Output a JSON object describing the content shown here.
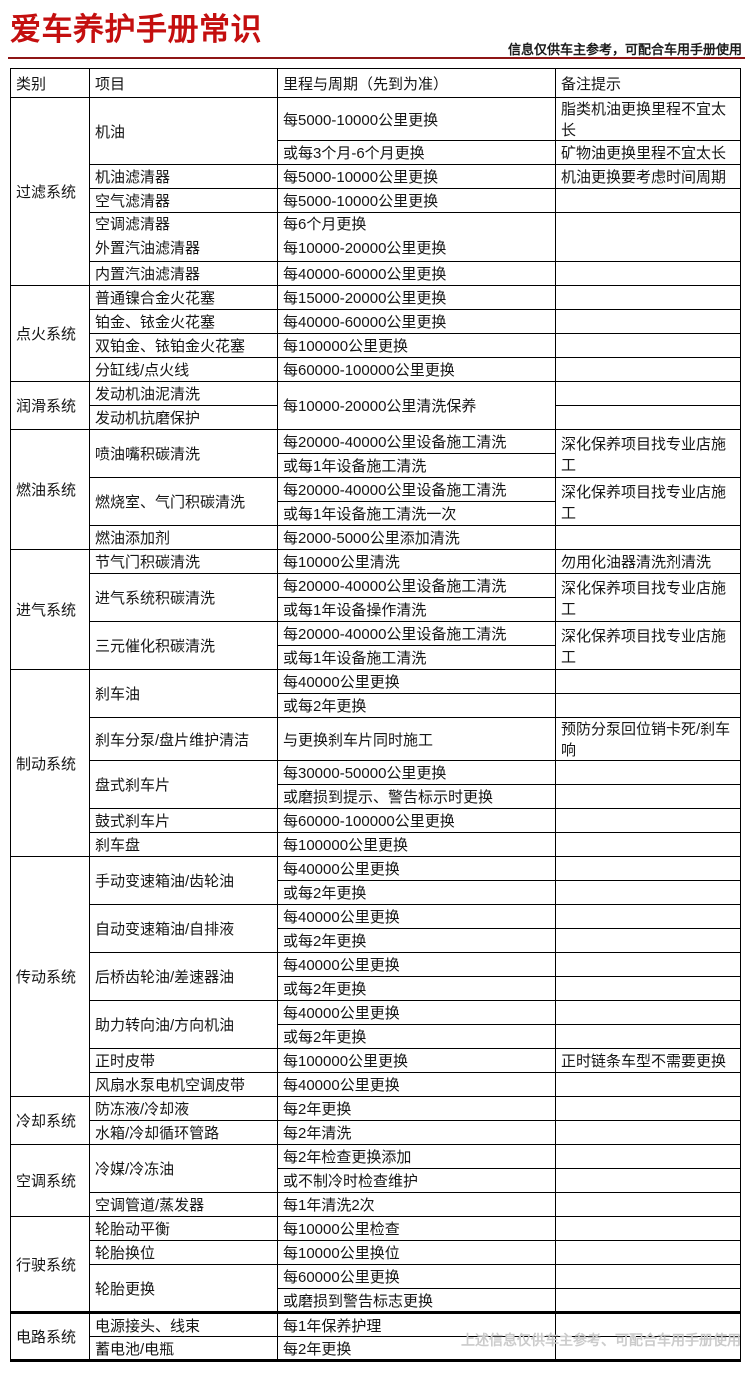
{
  "page": {
    "title": "爱车养护手册常识",
    "subtitle": "信息仅供车主参考，可配合车用手册使用",
    "footer": "上述信息仅供车主参考、可配合车用手册使用",
    "title_color": "#c40f0f",
    "rule_color": "#8e1515",
    "footer_color": "#cbcbcb"
  },
  "table": {
    "headers": [
      "类别",
      "项目",
      "里程与周期（先到为准）",
      "备注提示"
    ],
    "sections": [
      {
        "category": "过滤系统",
        "items": [
          {
            "name": "机油",
            "rows": [
              {
                "s": "每5000-10000公里更换",
                "n": "脂类机油更换里程不宜太长"
              },
              {
                "s": "或每3个月-6个月更换",
                "n": "矿物油更换里程不宜太长"
              }
            ]
          },
          {
            "name": "机油滤清器",
            "rows": [
              {
                "s": "每5000-10000公里更换",
                "n": "机油更换要考虑时间周期"
              }
            ]
          },
          {
            "name": "空气滤清器",
            "rows": [
              {
                "s": "每5000-10000公里更换",
                "n": ""
              }
            ]
          },
          {
            "name": "空调滤清器\n外置汽油滤清器",
            "rows": [
              {
                "s": "每6个月更换\n每10000-20000公里更换",
                "n": "",
                "h2": true
              }
            ]
          },
          {
            "name": "内置汽油滤清器",
            "rows": [
              {
                "s": "每40000-60000公里更换",
                "n": ""
              }
            ]
          }
        ]
      },
      {
        "category": "点火系统",
        "items": [
          {
            "name": "普通镍合金火花塞",
            "rows": [
              {
                "s": "每15000-20000公里更换",
                "n": ""
              }
            ]
          },
          {
            "name": "铂金、铱金火花塞",
            "rows": [
              {
                "s": "每40000-60000公里更换",
                "n": ""
              }
            ]
          },
          {
            "name": "双铂金、铱铂金火花塞",
            "rows": [
              {
                "s": "每100000公里更换",
                "n": ""
              }
            ]
          },
          {
            "name": "分缸线/点火线",
            "rows": [
              {
                "s": "每60000-100000公里更换",
                "n": ""
              }
            ]
          }
        ]
      },
      {
        "category": "润滑系统",
        "items": [
          {
            "name": "发动机油泥清洗",
            "rows": [
              {
                "s": "每10000-20000公里清洗保养",
                "s_span": 2,
                "n": ""
              }
            ]
          },
          {
            "name": "发动机抗磨保护",
            "rows": [
              {
                "s": null,
                "n": ""
              }
            ]
          }
        ]
      },
      {
        "category": "燃油系统",
        "items": [
          {
            "name": "喷油嘴积碳清洗",
            "rows": [
              {
                "s": "每20000-40000公里设备施工清洗",
                "n": "深化保养项目找专业店施工",
                "n_span": 2
              },
              {
                "s": "或每1年设备施工清洗",
                "n": null
              }
            ]
          },
          {
            "name": "燃烧室、气门积碳清洗",
            "rows": [
              {
                "s": "每20000-40000公里设备施工清洗",
                "n": "深化保养项目找专业店施工",
                "n_span": 2
              },
              {
                "s": "或每1年设备施工清洗一次",
                "n": null
              }
            ]
          },
          {
            "name": "燃油添加剂",
            "rows": [
              {
                "s": "每2000-5000公里添加清洗",
                "n": ""
              }
            ]
          }
        ]
      },
      {
        "category": "进气系统",
        "items": [
          {
            "name": "节气门积碳清洗",
            "rows": [
              {
                "s": "每10000公里清洗",
                "n": "勿用化油器清洗剂清洗"
              }
            ]
          },
          {
            "name": "进气系统积碳清洗",
            "rows": [
              {
                "s": "每20000-40000公里设备施工清洗",
                "n": "深化保养项目找专业店施工",
                "n_span": 2
              },
              {
                "s": "或每1年设备操作清洗",
                "n": null
              }
            ]
          },
          {
            "name": "三元催化积碳清洗",
            "rows": [
              {
                "s": "每20000-40000公里设备施工清洗",
                "n": "深化保养项目找专业店施工",
                "n_span": 2
              },
              {
                "s": "或每1年设备施工清洗",
                "n": null
              }
            ]
          }
        ]
      },
      {
        "category": "制动系统",
        "items": [
          {
            "name": "刹车油",
            "rows": [
              {
                "s": "每40000公里更换",
                "n": ""
              },
              {
                "s": "或每2年更换",
                "n": ""
              }
            ]
          },
          {
            "name": "刹车分泵/盘片维护清洁",
            "rows": [
              {
                "s": "与更换刹车片同时施工",
                "n": "预防分泵回位销卡死/刹车响"
              }
            ]
          },
          {
            "name": "盘式刹车片",
            "rows": [
              {
                "s": "每30000-50000公里更换",
                "n": ""
              },
              {
                "s": "或磨损到提示、警告标示时更换",
                "n": ""
              }
            ]
          },
          {
            "name": "鼓式刹车片",
            "rows": [
              {
                "s": "每60000-100000公里更换",
                "n": ""
              }
            ]
          },
          {
            "name": "刹车盘",
            "rows": [
              {
                "s": "每100000公里更换",
                "n": ""
              }
            ]
          }
        ]
      },
      {
        "category": "传动系统",
        "items": [
          {
            "name": "手动变速箱油/齿轮油",
            "rows": [
              {
                "s": "每40000公里更换",
                "n": ""
              },
              {
                "s": "或每2年更换",
                "n": ""
              }
            ]
          },
          {
            "name": "自动变速箱油/自排液",
            "rows": [
              {
                "s": "每40000公里更换",
                "n": ""
              },
              {
                "s": "或每2年更换",
                "n": ""
              }
            ]
          },
          {
            "name": "后桥齿轮油/差速器油",
            "rows": [
              {
                "s": "每40000公里更换",
                "n": ""
              },
              {
                "s": "或每2年更换",
                "n": ""
              }
            ]
          },
          {
            "name": "助力转向油/方向机油",
            "rows": [
              {
                "s": "每40000公里更换",
                "n": ""
              },
              {
                "s": "或每2年更换",
                "n": ""
              }
            ]
          },
          {
            "name": "正时皮带",
            "rows": [
              {
                "s": "每100000公里更换",
                "n": "正时链条车型不需要更换"
              }
            ]
          },
          {
            "name": "风扇水泵电机空调皮带",
            "rows": [
              {
                "s": "每40000公里更换",
                "n": ""
              }
            ]
          }
        ]
      },
      {
        "category": "冷却系统",
        "items": [
          {
            "name": "防冻液/冷却液",
            "rows": [
              {
                "s": "每2年更换",
                "n": ""
              }
            ]
          },
          {
            "name": "水箱/冷却循环管路",
            "rows": [
              {
                "s": "每2年清洗",
                "n": ""
              }
            ]
          }
        ]
      },
      {
        "category": "空调系统",
        "items": [
          {
            "name": "冷媒/冷冻油",
            "rows": [
              {
                "s": "每2年检查更换添加",
                "n": ""
              },
              {
                "s": "或不制冷时检查维护",
                "n": ""
              }
            ]
          },
          {
            "name": "空调管道/蒸发器",
            "rows": [
              {
                "s": "每1年清洗2次",
                "n": ""
              }
            ]
          }
        ]
      },
      {
        "category": "行驶系统",
        "items": [
          {
            "name": "轮胎动平衡",
            "rows": [
              {
                "s": "每10000公里检查",
                "n": ""
              }
            ]
          },
          {
            "name": "轮胎换位",
            "rows": [
              {
                "s": "每10000公里换位",
                "n": ""
              }
            ]
          },
          {
            "name": "轮胎更换",
            "rows": [
              {
                "s": "每60000公里更换",
                "n": ""
              },
              {
                "s": "或磨损到警告标志更换",
                "n": ""
              }
            ]
          }
        ]
      },
      {
        "category": "电路系统",
        "thick_top": true,
        "items": [
          {
            "name": "电源接头、线束",
            "rows": [
              {
                "s": "每1年保养护理",
                "n": ""
              }
            ]
          },
          {
            "name": "蓄电池/电瓶",
            "rows": [
              {
                "s": "每2年更换",
                "n": ""
              }
            ]
          }
        ]
      }
    ]
  }
}
